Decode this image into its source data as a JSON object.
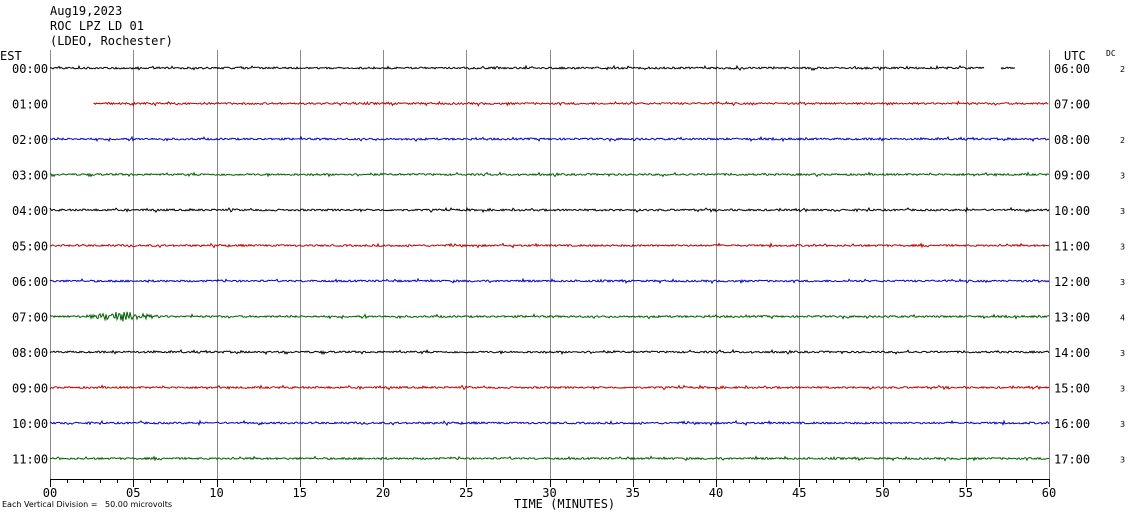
{
  "header": {
    "line1": "Aug19,2023",
    "line2": "ROC LPZ LD 01",
    "line3": "(LDEO, Rochester)"
  },
  "left_axis_label": "EST",
  "right_axis_label": "UTC",
  "dc_label": "DC",
  "footer_note": "Each Vertical Division =   50.00 microvolts",
  "chart_data": {
    "type": "line",
    "title": "ROC LPZ LD 01",
    "xlabel": "TIME (MINUTES)",
    "ylabel": "",
    "xlim": [
      0,
      60
    ],
    "x_ticks": [
      "00",
      "05",
      "10",
      "15",
      "20",
      "25",
      "30",
      "35",
      "40",
      "45",
      "50",
      "55",
      "60"
    ],
    "grid": true,
    "rows": [
      {
        "est": "00:00",
        "utc": "06:00",
        "dc": "2",
        "color": "#000000",
        "start_min": 0.0,
        "end_min": 58.0,
        "gap": [
          56.1,
          57.1
        ]
      },
      {
        "est": "01:00",
        "utc": "07:00",
        "dc": "",
        "color": "#c00000",
        "start_min": 2.6,
        "end_min": 60.0
      },
      {
        "est": "02:00",
        "utc": "08:00",
        "dc": "2",
        "color": "#0000c0",
        "start_min": 0.0,
        "end_min": 60.0
      },
      {
        "est": "03:00",
        "utc": "09:00",
        "dc": "3",
        "color": "#006000",
        "start_min": 0.0,
        "end_min": 60.0
      },
      {
        "est": "04:00",
        "utc": "10:00",
        "dc": "3",
        "color": "#000000",
        "start_min": 0.0,
        "end_min": 60.0
      },
      {
        "est": "05:00",
        "utc": "11:00",
        "dc": "3",
        "color": "#c00000",
        "start_min": 0.0,
        "end_min": 60.0
      },
      {
        "est": "06:00",
        "utc": "12:00",
        "dc": "3",
        "color": "#0000c0",
        "start_min": 0.0,
        "end_min": 60.0
      },
      {
        "est": "07:00",
        "utc": "13:00",
        "dc": "4",
        "color": "#006000",
        "start_min": 0.0,
        "end_min": 60.0,
        "event_min": 4.3
      },
      {
        "est": "08:00",
        "utc": "14:00",
        "dc": "3",
        "color": "#000000",
        "start_min": 0.0,
        "end_min": 60.0
      },
      {
        "est": "09:00",
        "utc": "15:00",
        "dc": "3",
        "color": "#c00000",
        "start_min": 0.0,
        "end_min": 60.0
      },
      {
        "est": "10:00",
        "utc": "16:00",
        "dc": "3",
        "color": "#0000c0",
        "start_min": 0.0,
        "end_min": 60.0
      },
      {
        "est": "11:00",
        "utc": "17:00",
        "dc": "3",
        "color": "#006000",
        "start_min": 0.0,
        "end_min": 60.0
      }
    ]
  }
}
